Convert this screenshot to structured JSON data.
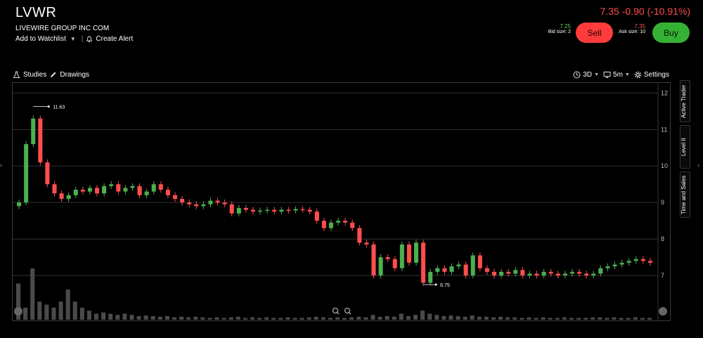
{
  "header": {
    "ticker": "LVWR",
    "company": "LIVEWIRE GROUP INC COM",
    "watchlist_label": "Add to Watchlist",
    "alert_label": "Create Alert",
    "quote": "7.35 -0.90 (-10.91%)"
  },
  "trade": {
    "bid_price": "7.25",
    "bid_size": "Bid size: 2",
    "ask_price": "7.35",
    "ask_size": "Ask size: 10",
    "sell_label": "Sell",
    "buy_label": "Buy"
  },
  "toolbar": {
    "studies_label": "Studies",
    "drawings_label": "Drawings",
    "range_label": "3D",
    "interval_label": "5m",
    "settings_label": "Settings"
  },
  "side_tabs": [
    "Active Trader",
    "Level II",
    "Time and Sales"
  ],
  "colors": {
    "up": "#4caf50",
    "down": "#ff4d4d",
    "sell": "#ff3b3b",
    "buy": "#35b135"
  },
  "chart_data": {
    "type": "candlestick",
    "y_ticks": [
      "12",
      "11",
      "10",
      "9",
      "8",
      "7"
    ],
    "ylim": [
      6.5,
      12.2
    ],
    "high_label": "11.63",
    "low_label": "6.75",
    "high": 11.63,
    "low": 6.75,
    "closes": [
      9.0,
      10.6,
      11.3,
      10.1,
      9.5,
      9.25,
      9.1,
      9.2,
      9.35,
      9.3,
      9.4,
      9.25,
      9.45,
      9.5,
      9.3,
      9.4,
      9.45,
      9.2,
      9.3,
      9.5,
      9.35,
      9.2,
      9.1,
      9.0,
      8.95,
      8.9,
      8.95,
      9.05,
      9.0,
      8.95,
      8.7,
      8.85,
      8.8,
      8.75,
      8.78,
      8.8,
      8.75,
      8.8,
      8.78,
      8.82,
      8.8,
      8.75,
      8.5,
      8.3,
      8.45,
      8.5,
      8.45,
      8.3,
      7.9,
      7.85,
      7.0,
      7.5,
      7.45,
      7.2,
      7.85,
      7.35,
      7.9,
      6.8,
      7.1,
      7.2,
      7.1,
      7.25,
      7.3,
      7.0,
      7.55,
      7.2,
      7.1,
      7.0,
      7.1,
      7.05,
      7.15,
      7.0,
      7.05,
      7.0,
      7.1,
      7.05,
      7.0,
      7.05,
      7.1,
      7.05,
      7.0,
      7.05,
      7.2,
      7.25,
      7.3,
      7.35,
      7.4,
      7.45,
      7.4,
      7.35
    ],
    "volume": [
      0.6,
      0.2,
      0.85,
      0.3,
      0.25,
      0.2,
      0.3,
      0.5,
      0.3,
      0.2,
      0.15,
      0.1,
      0.12,
      0.1,
      0.08,
      0.1,
      0.08,
      0.06,
      0.07,
      0.06,
      0.05,
      0.06,
      0.04,
      0.05,
      0.04,
      0.05,
      0.04,
      0.03,
      0.04,
      0.03,
      0.04,
      0.05,
      0.03,
      0.04,
      0.03,
      0.04,
      0.03,
      0.03,
      0.04,
      0.03,
      0.03,
      0.04,
      0.05,
      0.04,
      0.03,
      0.04,
      0.03,
      0.04,
      0.05,
      0.04,
      0.08,
      0.05,
      0.06,
      0.05,
      0.1,
      0.06,
      0.08,
      0.15,
      0.1,
      0.08,
      0.06,
      0.07,
      0.06,
      0.05,
      0.07,
      0.05,
      0.05,
      0.04,
      0.05,
      0.04,
      0.04,
      0.03,
      0.04,
      0.03,
      0.04,
      0.03,
      0.03,
      0.04,
      0.03,
      0.03,
      0.03,
      0.04,
      0.04,
      0.03,
      0.04,
      0.03,
      0.03,
      0.04,
      0.03,
      0.03
    ]
  }
}
